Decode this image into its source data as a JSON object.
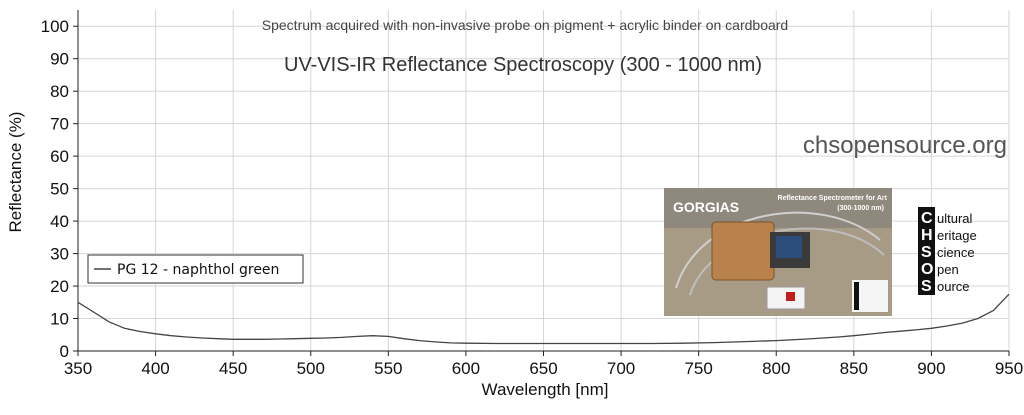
{
  "chart_data": {
    "type": "line",
    "title": "UV-VIS-IR Reflectance Spectroscopy (300 - 1000 nm)",
    "subtitle": "Spectrum acquired with non-invasive probe on pigment + acrylic binder on cardboard",
    "xlabel": "Wavelength [nm]",
    "ylabel": "Reflectance (%)",
    "xlim": [
      350,
      950
    ],
    "ylim": [
      0,
      105
    ],
    "x_ticks": [
      350,
      400,
      450,
      500,
      550,
      600,
      650,
      700,
      750,
      800,
      850,
      900,
      950
    ],
    "y_ticks": [
      0,
      10,
      20,
      30,
      40,
      50,
      60,
      70,
      80,
      90,
      100
    ],
    "grid": true,
    "legend_position": "left",
    "series": [
      {
        "name": "PG 12 - naphthol green",
        "color": "#444444",
        "x": [
          350,
          360,
          370,
          380,
          390,
          400,
          410,
          420,
          430,
          440,
          450,
          460,
          470,
          480,
          490,
          500,
          510,
          520,
          530,
          540,
          550,
          560,
          570,
          580,
          590,
          600,
          620,
          640,
          660,
          680,
          700,
          720,
          740,
          760,
          780,
          800,
          820,
          840,
          850,
          860,
          870,
          880,
          890,
          900,
          910,
          920,
          930,
          940,
          945,
          950
        ],
        "y": [
          15.0,
          12.0,
          9.0,
          7.0,
          6.0,
          5.3,
          4.7,
          4.3,
          4.0,
          3.8,
          3.6,
          3.6,
          3.6,
          3.7,
          3.8,
          3.9,
          4.0,
          4.2,
          4.5,
          4.7,
          4.5,
          3.8,
          3.2,
          2.8,
          2.5,
          2.4,
          2.3,
          2.3,
          2.3,
          2.3,
          2.3,
          2.3,
          2.4,
          2.6,
          2.9,
          3.2,
          3.7,
          4.3,
          4.7,
          5.2,
          5.7,
          6.1,
          6.5,
          7.0,
          7.7,
          8.6,
          10.0,
          12.5,
          15.0,
          17.5
        ]
      }
    ]
  },
  "watermark": "chsopensource.org",
  "inset_photo": {
    "title": "GORGIAS",
    "subtitle_line1": "Reflectance Spectrometer for Art",
    "subtitle_line2": "(300-1000 nm)"
  },
  "chsos_logo": {
    "letters": [
      "C",
      "H",
      "S",
      "O",
      "S"
    ],
    "words": [
      "ultural",
      "eritage",
      "cience",
      "pen",
      "ource"
    ]
  }
}
